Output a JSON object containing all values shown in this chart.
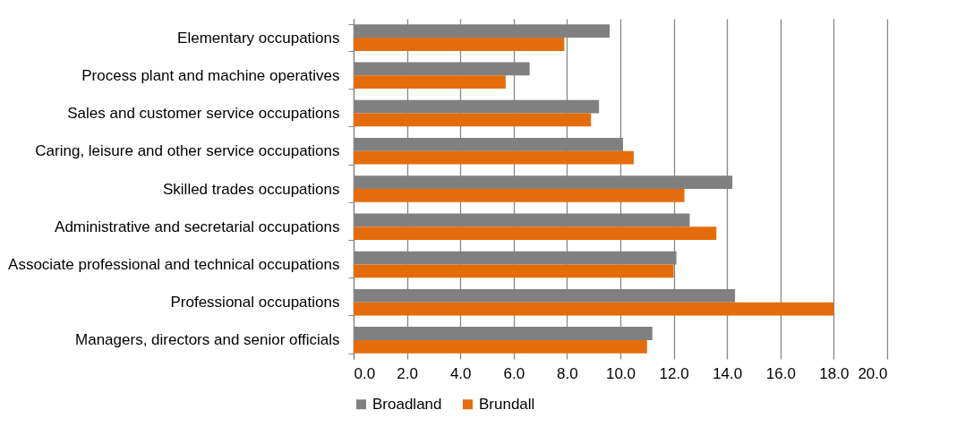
{
  "chart_data": {
    "type": "bar",
    "orientation": "horizontal",
    "categories": [
      "Elementary occupations",
      "Process plant and machine operatives",
      "Sales and customer service occupations",
      "Caring, leisure and other service occupations",
      "Skilled trades occupations",
      "Administrative and secretarial occupations",
      "Associate professional and technical occupations",
      "Professional occupations",
      "Managers, directors and senior officials"
    ],
    "series": [
      {
        "name": "Broadland",
        "color": "#808080",
        "values": [
          9.6,
          6.6,
          9.2,
          10.1,
          14.2,
          12.6,
          12.1,
          14.3,
          11.2
        ]
      },
      {
        "name": "Brundall",
        "color": "#e46c0a",
        "values": [
          7.9,
          5.7,
          8.9,
          10.5,
          12.4,
          13.6,
          12.0,
          18.0,
          11.0
        ]
      }
    ],
    "xlim": [
      0,
      20
    ],
    "xticks": [
      {
        "value": 0,
        "label": "0.0"
      },
      {
        "value": 2,
        "label": "2.0"
      },
      {
        "value": 4,
        "label": "4.0"
      },
      {
        "value": 6,
        "label": "6.0"
      },
      {
        "value": 8,
        "label": "8.0"
      },
      {
        "value": 10,
        "label": "10.0"
      },
      {
        "value": 12,
        "label": "12.0"
      },
      {
        "value": 14,
        "label": "14.0"
      },
      {
        "value": 16,
        "label": "16.0"
      },
      {
        "value": 18,
        "label": "18.0"
      },
      {
        "value": 20,
        "label": "20.0"
      }
    ],
    "grid": "x",
    "legend": "bottom"
  }
}
